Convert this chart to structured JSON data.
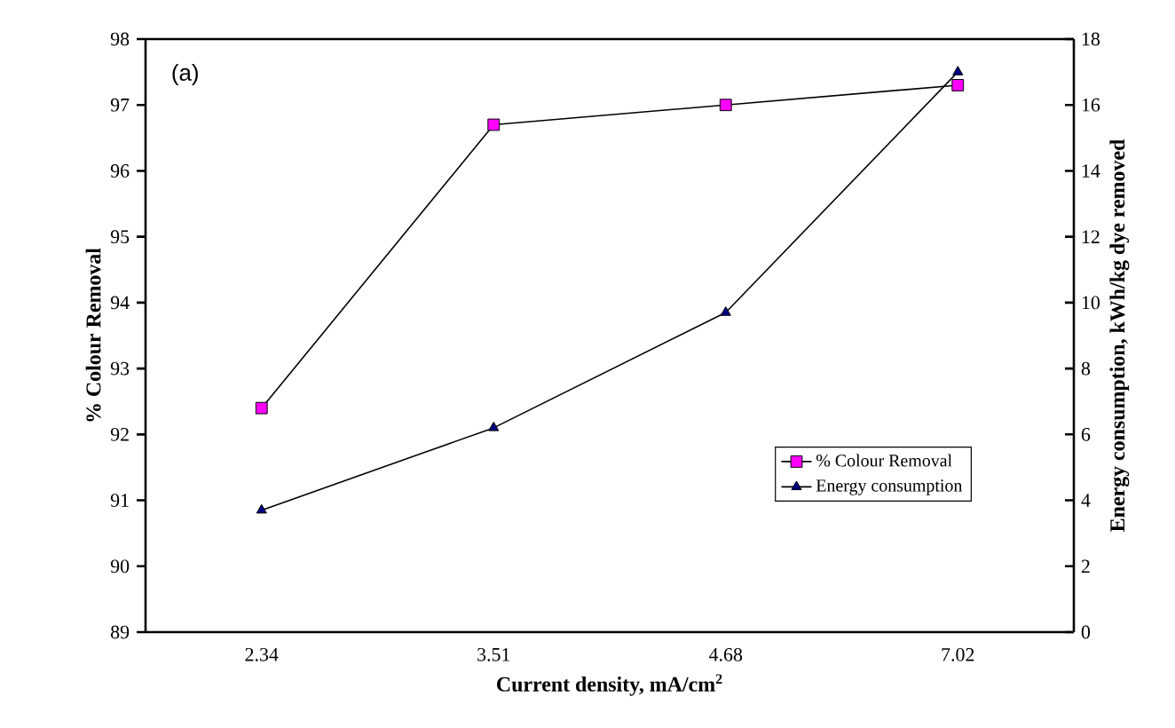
{
  "chart_data": {
    "type": "line",
    "xlabel": "Current density, mA/cm$^{2}$",
    "ylabel": "% Colour  Removal",
    "y2label": "Energy consumption, kWh/kg dye removed",
    "annotations": [
      "(a)"
    ],
    "categories": [
      "2.34",
      "3.51",
      "4.68",
      "7.02"
    ],
    "series": [
      {
        "name": "% Colour Removal",
        "color": "#ff00ff",
        "marker": "square",
        "values": [
          92.4,
          96.7,
          97.0,
          97.3
        ]
      },
      {
        "name": "Energy consumption",
        "color": "#000080",
        "marker": "triangle",
        "axis": "y2",
        "values": [
          3.7,
          6.2,
          9.7,
          17.0
        ]
      }
    ],
    "ylim": [
      89,
      98
    ],
    "yticks": [
      89,
      90,
      91,
      92,
      93,
      94,
      95,
      96,
      97,
      98
    ],
    "y2lim": [
      0,
      18
    ],
    "y2ticks": [
      0,
      2,
      4,
      6,
      8,
      10,
      12,
      14,
      16,
      18
    ],
    "legend": "right",
    "grid": false
  }
}
